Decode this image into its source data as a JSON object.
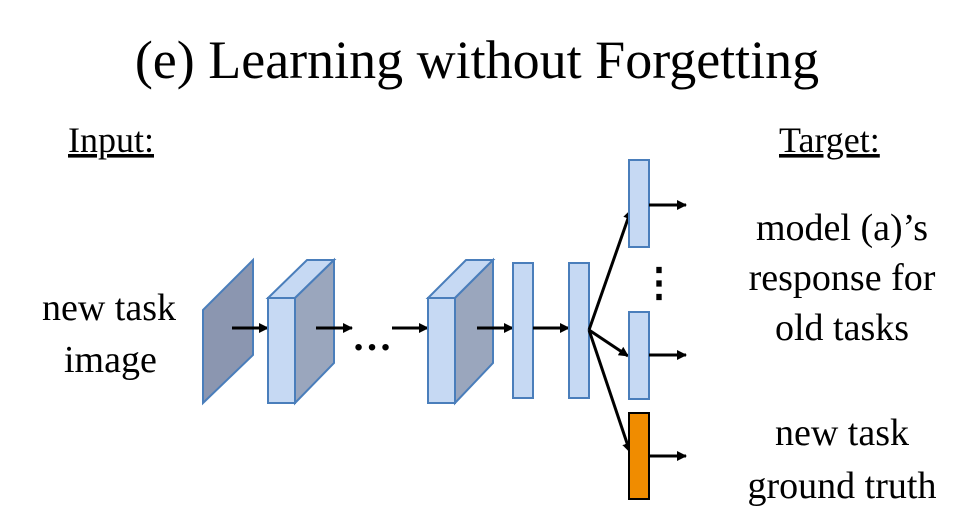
{
  "title": "(e) Learning without Forgetting",
  "input_heading": "Input:",
  "target_heading": "Target:",
  "input_label": [
    "new task",
    "image"
  ],
  "old_tasks_target": [
    "model (a)’s",
    "response for",
    "old tasks"
  ],
  "new_task_target": [
    "new task",
    "ground truth"
  ],
  "ellipsis_horizontal": "…",
  "ellipsis_vertical": "⋮",
  "colors": {
    "layer_fill": "#c6d9f3",
    "layer_stroke": "#4a7ebb",
    "layer_side": "#9aa6bd",
    "input_plane": "#8b96b0",
    "new_task_head": "#f08c00",
    "new_task_head_stroke": "#000000",
    "arrow": "#000000"
  }
}
